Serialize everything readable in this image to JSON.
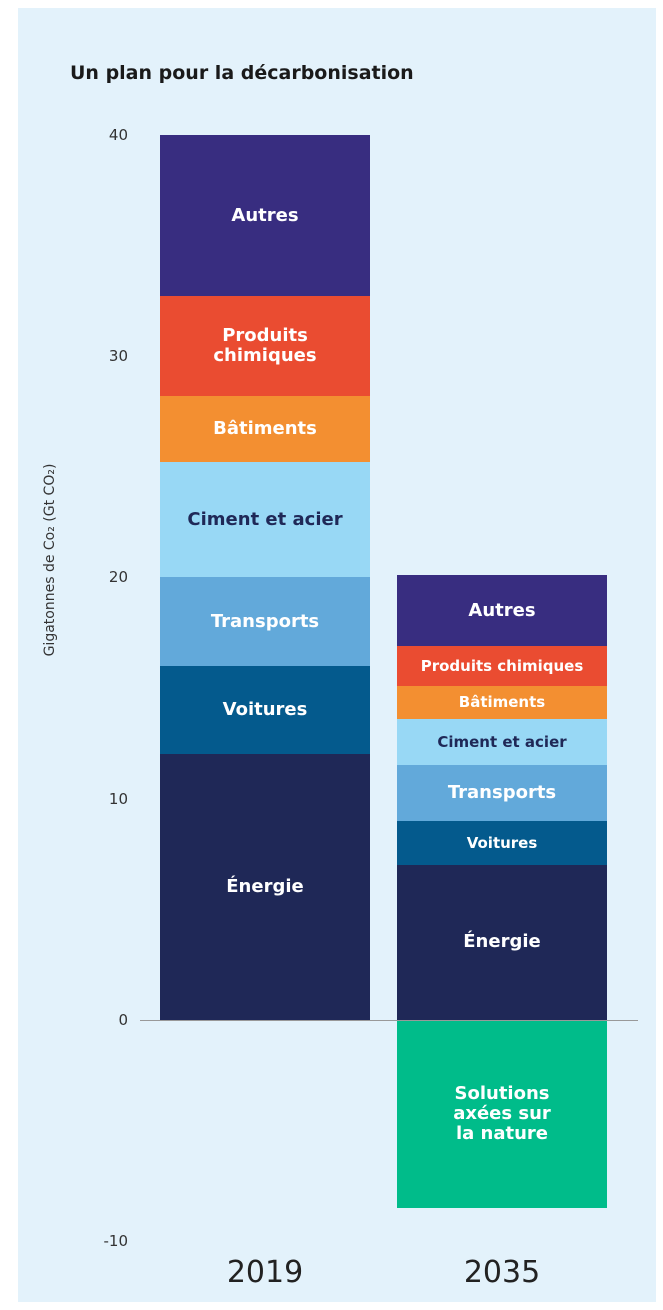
{
  "chart_data": {
    "type": "stacked-bar",
    "title": "Un plan pour la décarbonisation",
    "y_label": "Gigatonnes de Co₂ (Gt CO₂)",
    "categories": [
      "2019",
      "2035"
    ],
    "ylim": [
      -10,
      40
    ],
    "yticks": [
      -10,
      0,
      10,
      20,
      30,
      40
    ],
    "series": [
      {
        "name": "Énergie",
        "color": "#1f2857",
        "values": [
          12,
          7
        ]
      },
      {
        "name": "Voitures",
        "color": "#045a8d",
        "values": [
          4,
          2
        ]
      },
      {
        "name": "Transports",
        "color": "#62a9da",
        "values": [
          4,
          2.5
        ]
      },
      {
        "name": "Ciment et acier",
        "color": "#98d8f5",
        "values": [
          5.2,
          2.1
        ]
      },
      {
        "name": "Bâtiments",
        "color": "#f38f31",
        "values": [
          3,
          1.5
        ]
      },
      {
        "name": "Produits chimiques",
        "color": "#ea4c31",
        "values": [
          4.5,
          1.8
        ]
      },
      {
        "name": "Autres",
        "color": "#382d80",
        "values": [
          7.3,
          3.2
        ]
      },
      {
        "name": "Solutions axées sur la nature",
        "color": "#00bc8a",
        "values": [
          null,
          -8.5
        ]
      }
    ]
  }
}
